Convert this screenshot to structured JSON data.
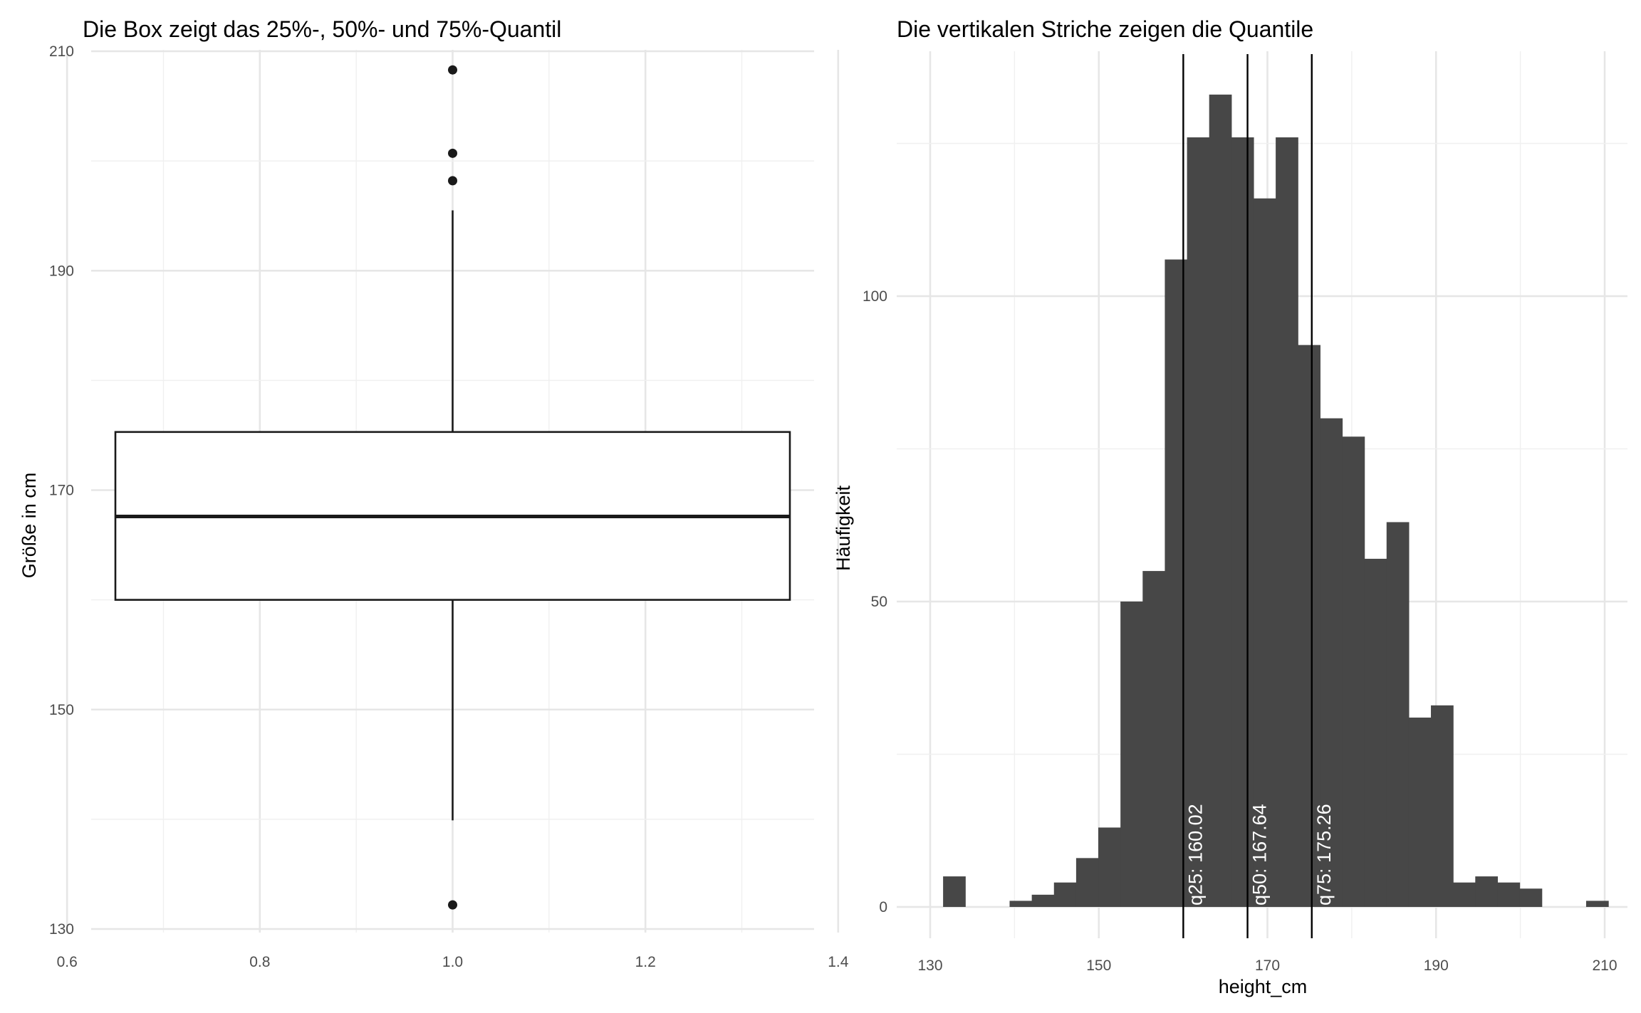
{
  "chart_data": [
    {
      "type": "box",
      "title": "Die Box zeigt das 25%-, 50%- und 75%-Quantil",
      "xlabel": "",
      "ylabel": "Größe in cm",
      "xlim": [
        0.625,
        1.375
      ],
      "ylim": [
        130,
        210
      ],
      "xticks": [
        "0.6",
        "0.8",
        "1.0",
        "1.2",
        "1.4"
      ],
      "yticks": [
        "130",
        "150",
        "170",
        "190",
        "210"
      ],
      "grid": true,
      "box": {
        "x": 1.0,
        "q1": 160.0,
        "median": 167.6,
        "q3": 175.3,
        "whisker_low": 139.9,
        "whisker_high": 195.5
      },
      "outliers": [
        208.3,
        200.7,
        198.2,
        132.2
      ]
    },
    {
      "type": "histogram",
      "title": "Die vertikalen Striche zeigen die Quantile",
      "xlabel": "height_cm",
      "ylabel": "Häufigkeit",
      "xlim": [
        130,
        210
      ],
      "ylim": [
        0,
        130
      ],
      "xticks": [
        "130",
        "150",
        "170",
        "190",
        "210"
      ],
      "yticks": [
        "0",
        "50",
        "100"
      ],
      "grid": true,
      "bar_color": "#474747",
      "bin_start": 128.9,
      "bin_width": 2.63,
      "counts": [
        0,
        5,
        0,
        0,
        1,
        2,
        4,
        8,
        13,
        50,
        55,
        106,
        126,
        133,
        126,
        116,
        126,
        92,
        80,
        77,
        57,
        63,
        31,
        33,
        4,
        5,
        4,
        3,
        0,
        0,
        1
      ],
      "quantiles": [
        {
          "value": 160.02,
          "label": "q25: 160.02"
        },
        {
          "value": 167.64,
          "label": "q50: 167.64"
        },
        {
          "value": 175.26,
          "label": "q75: 175.26"
        }
      ]
    }
  ]
}
